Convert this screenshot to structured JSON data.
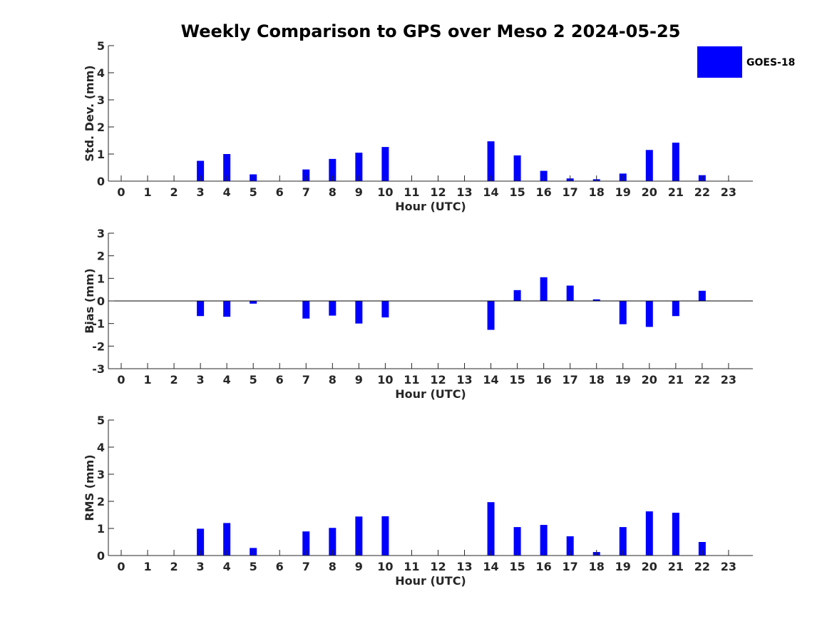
{
  "title": "Weekly Comparison to GPS over Meso 2 2024-05-25",
  "legend": {
    "label": "GOES-18",
    "color": "#0000ff"
  },
  "bar_color": "#0000ff",
  "chart_data": [
    {
      "type": "bar",
      "name": "std",
      "ylabel": "Std. Dev. (mm)",
      "xlabel": "Hour (UTC)",
      "ylim": [
        0,
        5
      ],
      "yticks": [
        0,
        1,
        2,
        3,
        4,
        5
      ],
      "categories": [
        "0",
        "1",
        "2",
        "3",
        "4",
        "5",
        "6",
        "7",
        "8",
        "9",
        "10",
        "11",
        "12",
        "13",
        "14",
        "15",
        "16",
        "17",
        "18",
        "19",
        "20",
        "21",
        "22",
        "23"
      ],
      "values": [
        null,
        null,
        null,
        0.75,
        1.0,
        0.25,
        null,
        0.43,
        0.82,
        1.05,
        1.26,
        null,
        null,
        null,
        1.47,
        0.95,
        0.38,
        0.1,
        0.07,
        0.28,
        1.15,
        1.42,
        0.22,
        null
      ],
      "series_name": "GOES-18"
    },
    {
      "type": "bar",
      "name": "bias",
      "ylabel": "Bias (mm)",
      "xlabel": "Hour (UTC)",
      "ylim": [
        -3,
        3
      ],
      "yticks": [
        -3,
        -2,
        -1,
        0,
        1,
        2,
        3
      ],
      "zero_line": true,
      "categories": [
        "0",
        "1",
        "2",
        "3",
        "4",
        "5",
        "6",
        "7",
        "8",
        "9",
        "10",
        "11",
        "12",
        "13",
        "14",
        "15",
        "16",
        "17",
        "18",
        "19",
        "20",
        "21",
        "22",
        "23"
      ],
      "values": [
        null,
        null,
        null,
        -0.67,
        -0.7,
        -0.12,
        null,
        -0.78,
        -0.65,
        -1.0,
        -0.73,
        null,
        null,
        null,
        -1.28,
        0.48,
        1.05,
        0.68,
        0.07,
        -1.03,
        -1.15,
        -0.67,
        0.45,
        null
      ],
      "series_name": "GOES-18"
    },
    {
      "type": "bar",
      "name": "rms",
      "ylabel": "RMS (mm)",
      "xlabel": "Hour (UTC)",
      "ylim": [
        0,
        5
      ],
      "yticks": [
        0,
        1,
        2,
        3,
        4,
        5
      ],
      "categories": [
        "0",
        "1",
        "2",
        "3",
        "4",
        "5",
        "6",
        "7",
        "8",
        "9",
        "10",
        "11",
        "12",
        "13",
        "14",
        "15",
        "16",
        "17",
        "18",
        "19",
        "20",
        "21",
        "22",
        "23"
      ],
      "values": [
        null,
        null,
        null,
        0.99,
        1.2,
        0.28,
        null,
        0.89,
        1.02,
        1.44,
        1.45,
        null,
        null,
        null,
        1.97,
        1.05,
        1.13,
        0.71,
        0.13,
        1.05,
        1.63,
        1.58,
        0.5,
        null
      ],
      "series_name": "GOES-18"
    }
  ]
}
